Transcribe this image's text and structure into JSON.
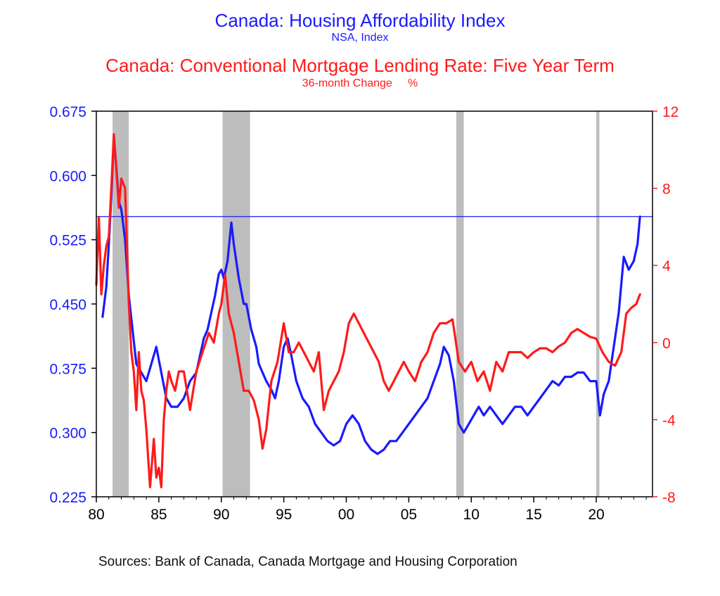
{
  "chart_data": {
    "type": "line",
    "titles": [
      {
        "text": "Canada: Housing Affordability Index",
        "unit": "NSA, Index",
        "color": "#1a1aff"
      },
      {
        "text": "Canada: Conventional Mortgage Lending Rate: Five Year Term",
        "unit": "36-month Change     %",
        "color": "#ff1a1a"
      }
    ],
    "x_ticks": [
      "80",
      "85",
      "90",
      "95",
      "00",
      "05",
      "10",
      "15",
      "20"
    ],
    "x_tick_years": [
      1980,
      1985,
      1990,
      1995,
      2000,
      2005,
      2010,
      2015,
      2020
    ],
    "xlim": [
      1980,
      2024.5
    ],
    "left_axis": {
      "ylim": [
        0.225,
        0.675
      ],
      "ticks": [
        "0.675",
        "0.600",
        "0.525",
        "0.450",
        "0.375",
        "0.300",
        "0.225"
      ],
      "color": "#1a1aff"
    },
    "right_axis": {
      "ylim": [
        -8,
        12
      ],
      "ticks": [
        "12",
        "8",
        "4",
        "0",
        "-4",
        "-8"
      ],
      "color": "#ff1a1a"
    },
    "recessions": [
      [
        1981.3,
        1982.6
      ],
      [
        1990.1,
        1992.3
      ],
      [
        2008.8,
        2009.4
      ],
      [
        2020.0,
        2020.25
      ]
    ],
    "reference_line": {
      "axis": "left",
      "value": 0.552,
      "color": "#1a1aff"
    },
    "series": [
      {
        "axis": "left",
        "color": "#1a1aff",
        "x": [
          1980.5,
          1980.8,
          1981.0,
          1981.2,
          1981.4,
          1981.6,
          1981.8,
          1982.0,
          1982.3,
          1982.6,
          1982.9,
          1983.2,
          1983.6,
          1984.0,
          1984.4,
          1984.8,
          1985.2,
          1985.6,
          1986.0,
          1986.5,
          1987.0,
          1987.5,
          1988.0,
          1988.3,
          1988.6,
          1988.9,
          1989.2,
          1989.5,
          1989.8,
          1990.0,
          1990.2,
          1990.5,
          1990.8,
          1991.0,
          1991.4,
          1991.8,
          1992.0,
          1992.4,
          1992.8,
          1993.0,
          1993.3,
          1993.6,
          1994.0,
          1994.3,
          1994.6,
          1995.0,
          1995.3,
          1995.6,
          1996.0,
          1996.5,
          1997.0,
          1997.5,
          1998.0,
          1998.5,
          1999.0,
          1999.5,
          2000.0,
          2000.5,
          2001.0,
          2001.5,
          2002.0,
          2002.5,
          2003.0,
          2003.5,
          2004.0,
          2004.5,
          2005.0,
          2005.5,
          2006.0,
          2006.5,
          2007.0,
          2007.5,
          2007.8,
          2008.2,
          2008.6,
          2009.0,
          2009.4,
          2009.8,
          2010.2,
          2010.6,
          2011.0,
          2011.5,
          2012.0,
          2012.5,
          2013.0,
          2013.5,
          2014.0,
          2014.5,
          2015.0,
          2015.5,
          2016.0,
          2016.5,
          2017.0,
          2017.5,
          2018.0,
          2018.5,
          2019.0,
          2019.5,
          2020.0,
          2020.3,
          2020.6,
          2021.0,
          2021.4,
          2021.8,
          2022.2,
          2022.6,
          2023.0,
          2023.3,
          2023.5
        ],
        "values": [
          0.435,
          0.47,
          0.52,
          0.575,
          0.645,
          0.61,
          0.57,
          0.56,
          0.525,
          0.46,
          0.42,
          0.38,
          0.37,
          0.36,
          0.38,
          0.4,
          0.37,
          0.34,
          0.33,
          0.33,
          0.34,
          0.36,
          0.37,
          0.39,
          0.41,
          0.42,
          0.44,
          0.46,
          0.485,
          0.49,
          0.48,
          0.5,
          0.545,
          0.52,
          0.48,
          0.45,
          0.45,
          0.42,
          0.4,
          0.38,
          0.37,
          0.36,
          0.35,
          0.34,
          0.36,
          0.4,
          0.41,
          0.39,
          0.36,
          0.34,
          0.33,
          0.31,
          0.3,
          0.29,
          0.285,
          0.29,
          0.31,
          0.32,
          0.31,
          0.29,
          0.28,
          0.275,
          0.28,
          0.29,
          0.29,
          0.3,
          0.31,
          0.32,
          0.33,
          0.34,
          0.36,
          0.38,
          0.4,
          0.39,
          0.36,
          0.31,
          0.3,
          0.31,
          0.32,
          0.33,
          0.32,
          0.33,
          0.32,
          0.31,
          0.32,
          0.33,
          0.33,
          0.32,
          0.33,
          0.34,
          0.35,
          0.36,
          0.355,
          0.365,
          0.365,
          0.37,
          0.37,
          0.36,
          0.36,
          0.32,
          0.345,
          0.36,
          0.4,
          0.44,
          0.505,
          0.49,
          0.5,
          0.52,
          0.552
        ]
      },
      {
        "axis": "right",
        "color": "#ff1a1a",
        "x": [
          1980.0,
          1980.2,
          1980.4,
          1980.6,
          1980.8,
          1981.0,
          1981.2,
          1981.4,
          1981.6,
          1981.8,
          1982.0,
          1982.3,
          1982.6,
          1982.8,
          1983.0,
          1983.2,
          1983.4,
          1983.6,
          1983.8,
          1984.0,
          1984.3,
          1984.6,
          1984.8,
          1985.0,
          1985.2,
          1985.4,
          1985.6,
          1985.8,
          1986.0,
          1986.3,
          1986.6,
          1987.0,
          1987.5,
          1988.0,
          1988.5,
          1989.0,
          1989.4,
          1989.8,
          1990.0,
          1990.3,
          1990.6,
          1991.0,
          1991.4,
          1991.8,
          1992.2,
          1992.6,
          1993.0,
          1993.3,
          1993.6,
          1994.0,
          1994.5,
          1995.0,
          1995.4,
          1995.8,
          1996.2,
          1996.6,
          1997.0,
          1997.4,
          1997.8,
          1998.2,
          1998.6,
          1999.0,
          1999.4,
          1999.8,
          2000.2,
          2000.6,
          2001.0,
          2001.4,
          2001.8,
          2002.2,
          2002.6,
          2003.0,
          2003.4,
          2003.8,
          2004.2,
          2004.6,
          2005.0,
          2005.5,
          2006.0,
          2006.5,
          2007.0,
          2007.5,
          2008.0,
          2008.5,
          2009.0,
          2009.5,
          2010.0,
          2010.5,
          2011.0,
          2011.5,
          2012.0,
          2012.5,
          2013.0,
          2013.5,
          2014.0,
          2014.5,
          2015.0,
          2015.5,
          2016.0,
          2016.5,
          2017.0,
          2017.5,
          2018.0,
          2018.5,
          2019.0,
          2019.5,
          2020.0,
          2020.5,
          2021.0,
          2021.5,
          2022.0,
          2022.4,
          2022.8,
          2023.2,
          2023.5
        ],
        "values": [
          3.0,
          6.5,
          2.5,
          4.0,
          5.0,
          5.5,
          8.0,
          10.8,
          9.0,
          7.0,
          8.5,
          8.0,
          2.0,
          -0.5,
          -1.5,
          -3.5,
          -0.5,
          -2.5,
          -3.0,
          -4.5,
          -7.5,
          -5.0,
          -7.0,
          -6.5,
          -7.5,
          -4.0,
          -2.5,
          -1.5,
          -2.0,
          -2.5,
          -1.5,
          -1.5,
          -3.5,
          -1.5,
          -0.5,
          0.5,
          0.0,
          1.5,
          2.0,
          3.5,
          1.5,
          0.5,
          -1.0,
          -2.5,
          -2.5,
          -3.0,
          -4.0,
          -5.5,
          -4.5,
          -2.0,
          -1.0,
          1.0,
          -0.5,
          -0.5,
          0.0,
          -0.5,
          -1.0,
          -1.5,
          -0.5,
          -3.5,
          -2.5,
          -2.0,
          -1.5,
          -0.5,
          1.0,
          1.5,
          1.0,
          0.5,
          0.0,
          -0.5,
          -1.0,
          -2.0,
          -2.5,
          -2.0,
          -1.5,
          -1.0,
          -1.5,
          -2.0,
          -1.0,
          -0.5,
          0.5,
          1.0,
          1.0,
          1.2,
          -1.0,
          -1.5,
          -1.0,
          -2.0,
          -1.5,
          -2.5,
          -1.0,
          -1.5,
          -0.5,
          -0.5,
          -0.5,
          -0.8,
          -0.5,
          -0.3,
          -0.3,
          -0.5,
          -0.2,
          0.0,
          0.5,
          0.7,
          0.5,
          0.3,
          0.2,
          -0.5,
          -1.0,
          -1.2,
          -0.5,
          1.5,
          1.8,
          2.0,
          2.5
        ]
      }
    ]
  },
  "sources": "Sources:  Bank of Canada, Canada Mortgage and Housing Corporation"
}
